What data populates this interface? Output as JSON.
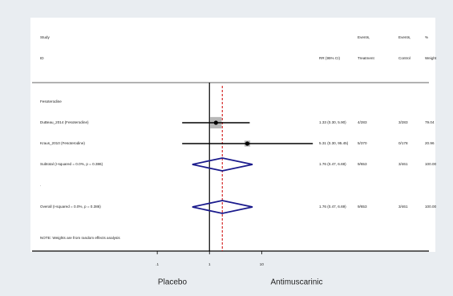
{
  "chart_data": {
    "type": "forest",
    "xscale": "log",
    "xlim": [
      0.0004,
      16000
    ],
    "xticks": [
      {
        "value": 0.1,
        "label": ".1"
      },
      1,
      10
    ],
    "null_value": 1,
    "xlabel_left": "Placebo",
    "xlabel_right": "Antimuscarinic",
    "headers": {
      "study": "Study",
      "id": "ID",
      "rr": "RR (95% CI)",
      "treat_1": "Events,",
      "treat_2": "Treatment",
      "control_1": "Events,",
      "control_2": "Control",
      "weight_1": "%",
      "weight_2": "Weight"
    },
    "colors": {
      "ci": "#000000",
      "box": "#b8b8b8",
      "diamond": "#1a1a8c",
      "overall_line": "#cc0000"
    },
    "group": "Fesoterodine",
    "rows": [
      {
        "kind": "study",
        "label": "DuBeau_2014 (Fesoterodine)",
        "estimate": 1.33,
        "lower": 0.3,
        "upper": 5.9,
        "rr_label": "1.33 (0.30, 5.90)",
        "events_treatment": "4/283",
        "events_control": "3/283",
        "weight": 79.04
      },
      {
        "kind": "study",
        "label": "Kraus_2010 (Fesoterodine)",
        "estimate": 5.31,
        "lower": 0.3,
        "upper": 95.45,
        "rr_label": "5.31 (0.30, 95.45)",
        "events_treatment": "5/370",
        "events_control": "0/178",
        "weight": 20.96
      },
      {
        "kind": "pooled",
        "label": "Subtotal  (I-squared = 0.0%, p = 0.386)",
        "estimate": 1.76,
        "lower": 0.47,
        "upper": 6.69,
        "rr_label": "1.76 (0.47, 6.69)",
        "events_treatment": "9/653",
        "events_control": "3/461",
        "weight_label": "100.00"
      },
      {
        "kind": "text",
        "label": "."
      },
      {
        "kind": "overall",
        "label": "Overall  (I-squared = 0.0%, p = 0.386)",
        "estimate": 1.76,
        "lower": 0.47,
        "upper": 6.69,
        "rr_label": "1.76 (0.47, 6.69)",
        "events_treatment": "9/653",
        "events_control": "3/461",
        "weight_label": "100.00"
      }
    ],
    "note": "NOTE: Weights are from random effects analysis"
  }
}
